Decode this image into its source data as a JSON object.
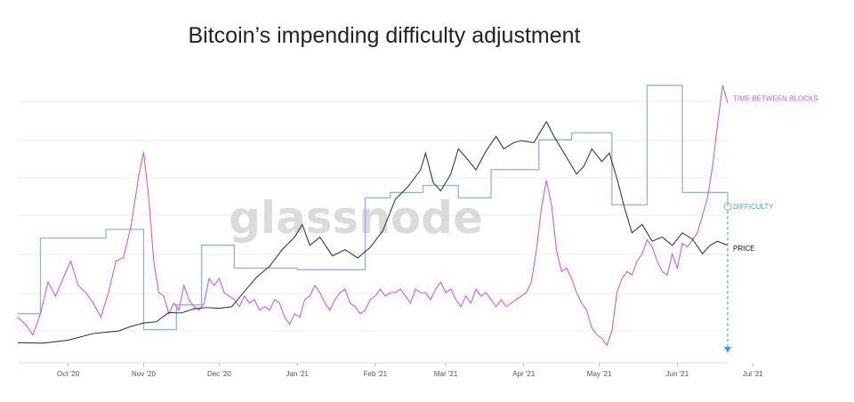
{
  "title": "Bitcoin’s impending difficulty adjustment",
  "watermark": "glassnode",
  "colors": {
    "price": "#3a3a3a",
    "difficulty": "#8fb3df",
    "time_between_blocks": "#c95fd4",
    "difficulty_arrow": "#4b9fd8",
    "difficulty_marker": "#8fd08f",
    "grid": "#eeeeee",
    "axis": "#dddddd"
  },
  "chart_data": {
    "type": "line",
    "title": "Bitcoin’s impending difficulty adjustment",
    "xlabel": "",
    "ylabel": "",
    "grid": true,
    "legend": "inline labels at right end of each series",
    "xlim": [
      0,
      282
    ],
    "x_ticks": [
      {
        "day": 20,
        "label": "Oct '20"
      },
      {
        "day": 50,
        "label": "Nov '20"
      },
      {
        "day": 80,
        "label": "Dec '20"
      },
      {
        "day": 111,
        "label": "Jan '21"
      },
      {
        "day": 142,
        "label": "Feb '21"
      },
      {
        "day": 170,
        "label": "Mar '21"
      },
      {
        "day": 201,
        "label": "Apr '21"
      },
      {
        "day": 231,
        "label": "May '21"
      },
      {
        "day": 262,
        "label": "Jun '21"
      },
      {
        "day": 292,
        "label": "Jul '21"
      }
    ],
    "series": [
      {
        "name": "PRICE",
        "unit": "USD",
        "ylim": [
          6000,
          73000
        ],
        "points": [
          [
            0,
            10800
          ],
          [
            10,
            10700
          ],
          [
            20,
            11400
          ],
          [
            30,
            13000
          ],
          [
            40,
            13600
          ],
          [
            45,
            14700
          ],
          [
            50,
            15500
          ],
          [
            55,
            15800
          ],
          [
            60,
            18000
          ],
          [
            65,
            17900
          ],
          [
            70,
            18900
          ],
          [
            75,
            19200
          ],
          [
            80,
            19000
          ],
          [
            85,
            19400
          ],
          [
            90,
            23000
          ],
          [
            95,
            26500
          ],
          [
            100,
            29000
          ],
          [
            105,
            33000
          ],
          [
            110,
            36000
          ],
          [
            113,
            39000
          ],
          [
            116,
            34000
          ],
          [
            120,
            36000
          ],
          [
            125,
            31500
          ],
          [
            130,
            33000
          ],
          [
            135,
            31000
          ],
          [
            140,
            33500
          ],
          [
            145,
            37500
          ],
          [
            150,
            45000
          ],
          [
            155,
            48000
          ],
          [
            160,
            52000
          ],
          [
            162,
            56000
          ],
          [
            165,
            49000
          ],
          [
            168,
            47000
          ],
          [
            172,
            51000
          ],
          [
            175,
            57000
          ],
          [
            178,
            55000
          ],
          [
            182,
            52000
          ],
          [
            186,
            56500
          ],
          [
            190,
            60000
          ],
          [
            193,
            57000
          ],
          [
            197,
            58500
          ],
          [
            200,
            59000
          ],
          [
            205,
            58500
          ],
          [
            210,
            63500
          ],
          [
            213,
            60000
          ],
          [
            218,
            55000
          ],
          [
            222,
            51000
          ],
          [
            225,
            53000
          ],
          [
            228,
            57000
          ],
          [
            232,
            54000
          ],
          [
            235,
            56000
          ],
          [
            238,
            50000
          ],
          [
            241,
            43000
          ],
          [
            244,
            37000
          ],
          [
            248,
            39000
          ],
          [
            252,
            35000
          ],
          [
            256,
            36000
          ],
          [
            260,
            34000
          ],
          [
            264,
            37000
          ],
          [
            268,
            35500
          ],
          [
            272,
            32000
          ],
          [
            275,
            34000
          ],
          [
            278,
            35000
          ],
          [
            282,
            34000
          ]
        ]
      },
      {
        "name": "DIFFICULTY",
        "unit": "T",
        "ylim": [
          12,
          28
        ],
        "step_x": [
          0,
          9,
          35,
          50,
          63,
          73,
          86,
          111,
          138,
          148,
          161,
          175,
          188,
          207,
          220,
          236,
          250,
          264,
          282
        ],
        "step_y": [
          14.8,
          19.1,
          19.6,
          13.9,
          15.3,
          18.7,
          17.4,
          17.3,
          21.4,
          21.7,
          22.1,
          21.4,
          23.0,
          24.7,
          25.1,
          21.0,
          27.8,
          21.7,
          20.9
        ]
      },
      {
        "name": "TIME BETWEEN BLOCKS",
        "unit": "minutes",
        "ylim": [
          8.5,
          16.5
        ],
        "points": [
          [
            0,
            9.8
          ],
          [
            3,
            9.6
          ],
          [
            6,
            9.3
          ],
          [
            9,
            9.9
          ],
          [
            12,
            10.8
          ],
          [
            15,
            10.4
          ],
          [
            18,
            10.9
          ],
          [
            21,
            11.4
          ],
          [
            24,
            10.7
          ],
          [
            27,
            10.5
          ],
          [
            30,
            10.2
          ],
          [
            33,
            9.8
          ],
          [
            36,
            10.5
          ],
          [
            39,
            11.4
          ],
          [
            42,
            11.5
          ],
          [
            45,
            12.4
          ],
          [
            48,
            13.8
          ],
          [
            50,
            14.5
          ],
          [
            52,
            13.2
          ],
          [
            54,
            11.4
          ],
          [
            56,
            10.5
          ],
          [
            58,
            10.4
          ],
          [
            60,
            9.9
          ],
          [
            62,
            10.2
          ],
          [
            64,
            10.0
          ],
          [
            66,
            10.7
          ],
          [
            68,
            10.3
          ],
          [
            70,
            10.1
          ],
          [
            72,
            10.0
          ],
          [
            74,
            10.2
          ],
          [
            76,
            10.9
          ],
          [
            78,
            10.7
          ],
          [
            80,
            10.9
          ],
          [
            82,
            10.5
          ],
          [
            84,
            10.4
          ],
          [
            86,
            10.3
          ],
          [
            88,
            10.1
          ],
          [
            90,
            10.4
          ],
          [
            92,
            10.2
          ],
          [
            94,
            10.3
          ],
          [
            96,
            10.0
          ],
          [
            98,
            10.1
          ],
          [
            100,
            10.0
          ],
          [
            102,
            10.3
          ],
          [
            104,
            10.2
          ],
          [
            106,
            9.8
          ],
          [
            108,
            9.6
          ],
          [
            110,
            9.9
          ],
          [
            112,
            9.8
          ],
          [
            114,
            10.3
          ],
          [
            116,
            10.4
          ],
          [
            118,
            10.7
          ],
          [
            120,
            10.5
          ],
          [
            122,
            10.2
          ],
          [
            124,
            10.0
          ],
          [
            126,
            10.3
          ],
          [
            128,
            10.5
          ],
          [
            130,
            10.6
          ],
          [
            132,
            10.2
          ],
          [
            134,
            10.1
          ],
          [
            136,
            9.9
          ],
          [
            138,
            10.0
          ],
          [
            140,
            10.3
          ],
          [
            142,
            10.4
          ],
          [
            144,
            10.6
          ],
          [
            146,
            10.4
          ],
          [
            148,
            10.5
          ],
          [
            150,
            10.5
          ],
          [
            152,
            10.6
          ],
          [
            154,
            10.4
          ],
          [
            156,
            10.2
          ],
          [
            158,
            10.6
          ],
          [
            160,
            10.5
          ],
          [
            162,
            10.5
          ],
          [
            164,
            10.3
          ],
          [
            166,
            10.6
          ],
          [
            168,
            10.8
          ],
          [
            170,
            10.5
          ],
          [
            172,
            10.6
          ],
          [
            174,
            10.3
          ],
          [
            176,
            10.1
          ],
          [
            178,
            10.4
          ],
          [
            180,
            10.2
          ],
          [
            182,
            10.6
          ],
          [
            184,
            10.4
          ],
          [
            186,
            10.5
          ],
          [
            188,
            10.3
          ],
          [
            190,
            10.1
          ],
          [
            192,
            10.3
          ],
          [
            194,
            10.1
          ],
          [
            196,
            10.2
          ],
          [
            198,
            10.3
          ],
          [
            200,
            10.4
          ],
          [
            202,
            10.5
          ],
          [
            204,
            10.8
          ],
          [
            206,
            11.7
          ],
          [
            208,
            12.9
          ],
          [
            210,
            13.7
          ],
          [
            212,
            13.0
          ],
          [
            214,
            11.7
          ],
          [
            216,
            11.1
          ],
          [
            218,
            11.2
          ],
          [
            220,
            10.9
          ],
          [
            222,
            10.5
          ],
          [
            224,
            10.2
          ],
          [
            226,
            10.0
          ],
          [
            228,
            9.5
          ],
          [
            230,
            9.3
          ],
          [
            232,
            9.2
          ],
          [
            234,
            9.0
          ],
          [
            236,
            9.4
          ],
          [
            238,
            10.5
          ],
          [
            240,
            10.9
          ],
          [
            242,
            11.1
          ],
          [
            244,
            11.0
          ],
          [
            246,
            11.4
          ],
          [
            248,
            11.6
          ],
          [
            250,
            12.0
          ],
          [
            252,
            11.8
          ],
          [
            254,
            11.4
          ],
          [
            256,
            11.1
          ],
          [
            258,
            11.0
          ],
          [
            260,
            11.6
          ],
          [
            262,
            11.2
          ],
          [
            264,
            11.9
          ],
          [
            266,
            11.8
          ],
          [
            268,
            12.0
          ],
          [
            270,
            12.2
          ],
          [
            272,
            12.7
          ],
          [
            274,
            13.2
          ],
          [
            276,
            14.1
          ],
          [
            278,
            15.3
          ],
          [
            280,
            16.4
          ],
          [
            282,
            15.9
          ]
        ]
      }
    ]
  }
}
